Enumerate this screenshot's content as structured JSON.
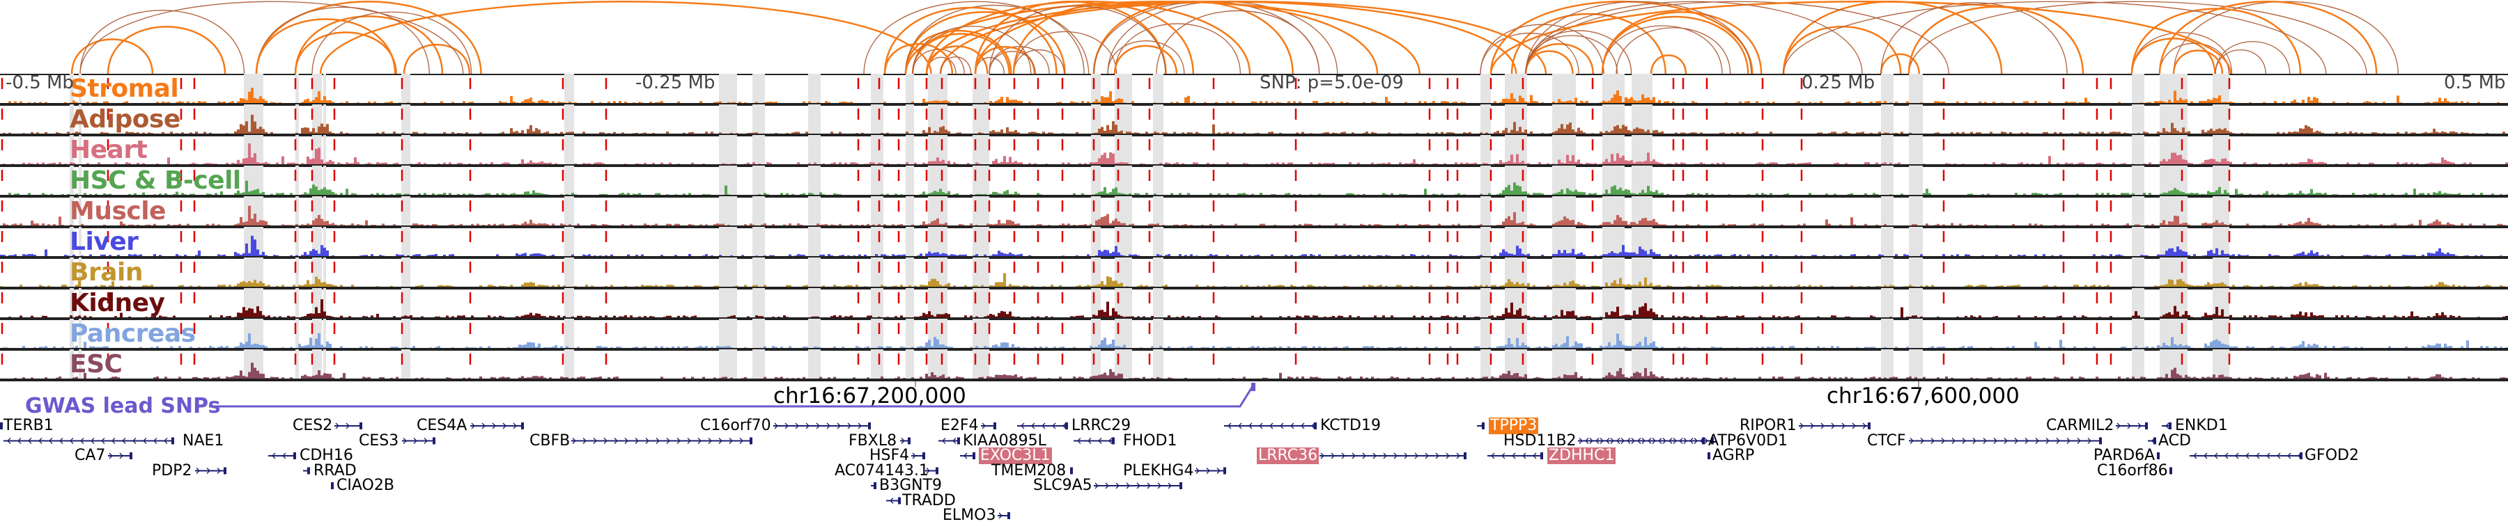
{
  "axis": {
    "left": "-0.5 Mb",
    "left_mid": "-0.25 Mb",
    "center": "SNP: p=5.0e-09",
    "right_mid": "0.25 Mb",
    "right": "0.5 Mb"
  },
  "tracks": [
    {
      "name": "Stromal",
      "color": "#f57a17"
    },
    {
      "name": "Adipose",
      "color": "#ad5a34"
    },
    {
      "name": "Heart",
      "color": "#d66f80"
    },
    {
      "name": "HSC & B-cell",
      "color": "#55a452"
    },
    {
      "name": "Muscle",
      "color": "#c2625b"
    },
    {
      "name": "Liver",
      "color": "#4a4ae0"
    },
    {
      "name": "Brain",
      "color": "#c2962e"
    },
    {
      "name": "Kidney",
      "color": "#6b0d0d"
    },
    {
      "name": "Pancreas",
      "color": "#82a5e0"
    },
    {
      "name": "ESC",
      "color": "#8a4a62"
    }
  ],
  "gwas": {
    "label": "GWAS lead SNPs",
    "color": "#6a5acd"
  },
  "coordinates": [
    "chr16:67,200,000",
    "chr16:67,600,000"
  ],
  "colors": {
    "arc_strong": "#f57a17",
    "arc_weak": "#b0603a",
    "marker_line": "#e00000",
    "highlight_band": "#e4e4e4",
    "gene": "#1c1f6e"
  },
  "genes": [
    {
      "name": "TERB1",
      "strand": "+"
    },
    {
      "name": "NAE1",
      "strand": "-"
    },
    {
      "name": "CA7",
      "strand": "+"
    },
    {
      "name": "PDP2",
      "strand": "+"
    },
    {
      "name": "CES2",
      "strand": "+"
    },
    {
      "name": "CES3",
      "strand": "+"
    },
    {
      "name": "CDH16",
      "strand": "-"
    },
    {
      "name": "RRAD",
      "strand": "-"
    },
    {
      "name": "CIAO2B",
      "strand": "-"
    },
    {
      "name": "CES4A",
      "strand": "+"
    },
    {
      "name": "CBFB",
      "strand": "+"
    },
    {
      "name": "C16orf70",
      "strand": "+"
    },
    {
      "name": "FBXL8",
      "strand": "+"
    },
    {
      "name": "HSF4",
      "strand": "+"
    },
    {
      "name": "AC074143.1",
      "strand": "+"
    },
    {
      "name": "B3GNT9",
      "strand": "+"
    },
    {
      "name": "TRADD",
      "strand": "-"
    },
    {
      "name": "ELMO3",
      "strand": "+"
    },
    {
      "name": "E2F4",
      "strand": "+"
    },
    {
      "name": "KIAA0895L",
      "strand": "-"
    },
    {
      "name": "EXOC3L1",
      "strand": "-",
      "highlight": "#d4707e"
    },
    {
      "name": "TMEM208",
      "strand": "+"
    },
    {
      "name": "SLC9A5",
      "strand": "+"
    },
    {
      "name": "LRRC29",
      "strand": "-"
    },
    {
      "name": "FHOD1",
      "strand": "-"
    },
    {
      "name": "PLEKHG4",
      "strand": "+"
    },
    {
      "name": "KCTD19",
      "strand": "-"
    },
    {
      "name": "LRRC36",
      "strand": "+",
      "highlight": "#d4707e"
    },
    {
      "name": "TPPP3",
      "strand": "-",
      "highlight": "#f57a17"
    },
    {
      "name": "HSD11B2",
      "strand": "+"
    },
    {
      "name": "ZDHHC1",
      "strand": "-",
      "highlight": "#d4707e"
    },
    {
      "name": "ATP6V0D1",
      "strand": "-"
    },
    {
      "name": "AGRP",
      "strand": "-"
    },
    {
      "name": "RIPOR1",
      "strand": "+"
    },
    {
      "name": "CTCF",
      "strand": "+"
    },
    {
      "name": "CARMIL2",
      "strand": "+"
    },
    {
      "name": "ENKD1",
      "strand": "-"
    },
    {
      "name": "ACD",
      "strand": "-"
    },
    {
      "name": "PARD6A",
      "strand": "+"
    },
    {
      "name": "C16orf86",
      "strand": "+"
    },
    {
      "name": "GFOD2",
      "strand": "-"
    }
  ]
}
